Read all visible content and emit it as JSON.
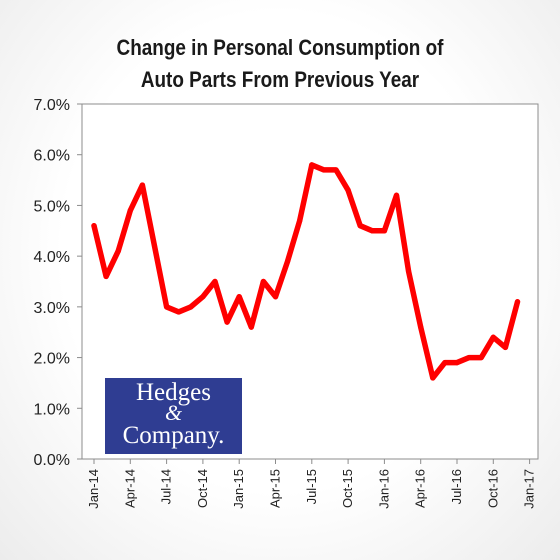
{
  "chart_data": {
    "type": "line",
    "title": "Change in Personal Consumption of Auto Parts From Previous Year",
    "title_lines": [
      "Change in Personal Consumption of",
      "Auto Parts From Previous Year"
    ],
    "ylim": [
      0,
      7
    ],
    "y_ticks": [
      "0.0%",
      "1.0%",
      "2.0%",
      "3.0%",
      "4.0%",
      "5.0%",
      "6.0%",
      "7.0%"
    ],
    "x_ticks": [
      "Jan-14",
      "Apr-14",
      "Jul-14",
      "Oct-14",
      "Jan-15",
      "Apr-15",
      "Jul-15",
      "Oct-15",
      "Jan-16",
      "Apr-16",
      "Jul-16",
      "Oct-16",
      "Jan-17"
    ],
    "grid": false,
    "line_color": "#ff0000",
    "series": [
      {
        "x": [
          "Jan-14",
          "Feb-14",
          "Mar-14",
          "Apr-14",
          "May-14",
          "Jun-14",
          "Jul-14",
          "Aug-14",
          "Sep-14",
          "Oct-14",
          "Nov-14",
          "Dec-14",
          "Jan-15",
          "Feb-15",
          "Mar-15",
          "Apr-15",
          "May-15",
          "Jun-15",
          "Jul-15",
          "Aug-15",
          "Sep-15",
          "Oct-15",
          "Nov-15",
          "Dec-15",
          "Jan-16",
          "Feb-16",
          "Mar-16",
          "Apr-16",
          "May-16",
          "Jun-16",
          "Jul-16",
          "Aug-16",
          "Sep-16",
          "Oct-16",
          "Nov-16",
          "Dec-16"
        ],
        "values": [
          4.6,
          3.6,
          4.1,
          4.9,
          5.4,
          4.2,
          3.0,
          2.9,
          3.0,
          3.2,
          3.5,
          2.7,
          3.2,
          2.6,
          3.5,
          3.2,
          3.9,
          4.7,
          5.8,
          5.7,
          5.7,
          5.3,
          4.6,
          4.5,
          4.5,
          5.2,
          3.7,
          2.6,
          1.6,
          1.9,
          1.9,
          2.0,
          2.0,
          2.4,
          2.2,
          3.1
        ]
      }
    ]
  },
  "logo": {
    "name": "Hedges & Company",
    "line1": "Hedges",
    "line2": "&",
    "line3": "Company."
  }
}
